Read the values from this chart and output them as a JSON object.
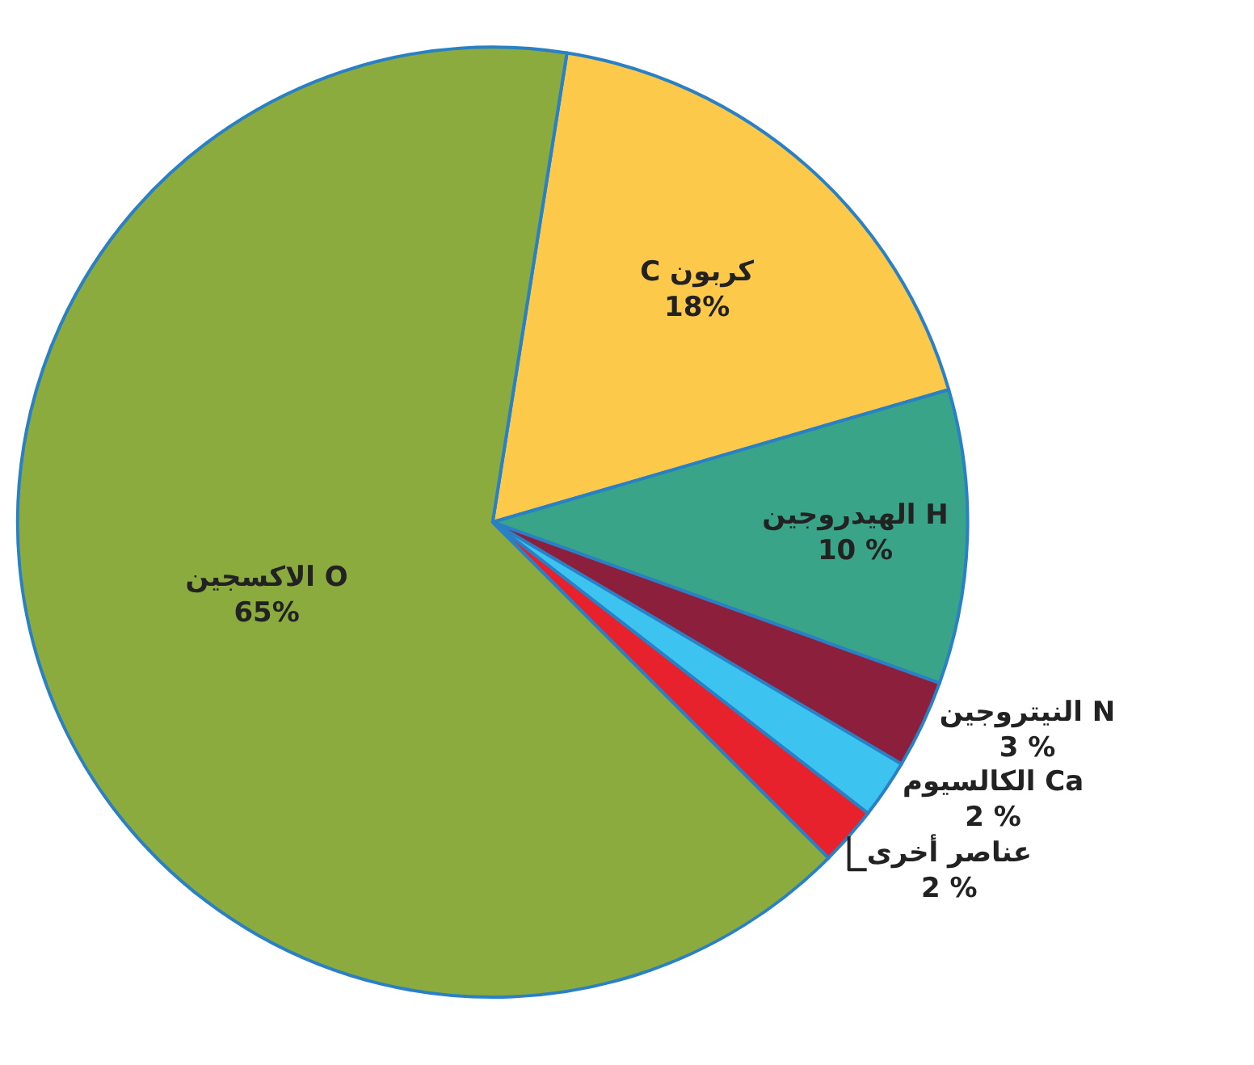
{
  "chart_data": {
    "type": "pie",
    "categories": [
      "C كربون",
      "الهيدروجين H",
      "النيتروجين N",
      "الكالسيوم Ca",
      "عناصر أخرى",
      "الاكسجين O"
    ],
    "values": [
      18,
      10,
      3,
      2,
      2,
      65
    ],
    "value_labels": [
      "18%",
      "10 %",
      "3 %",
      "2 %",
      "2 %",
      "65%"
    ],
    "colors": [
      "#fcc94a",
      "#3aa489",
      "#8c1f3c",
      "#3cc3f0",
      "#e8222c",
      "#8bab3e"
    ],
    "legend": false
  }
}
